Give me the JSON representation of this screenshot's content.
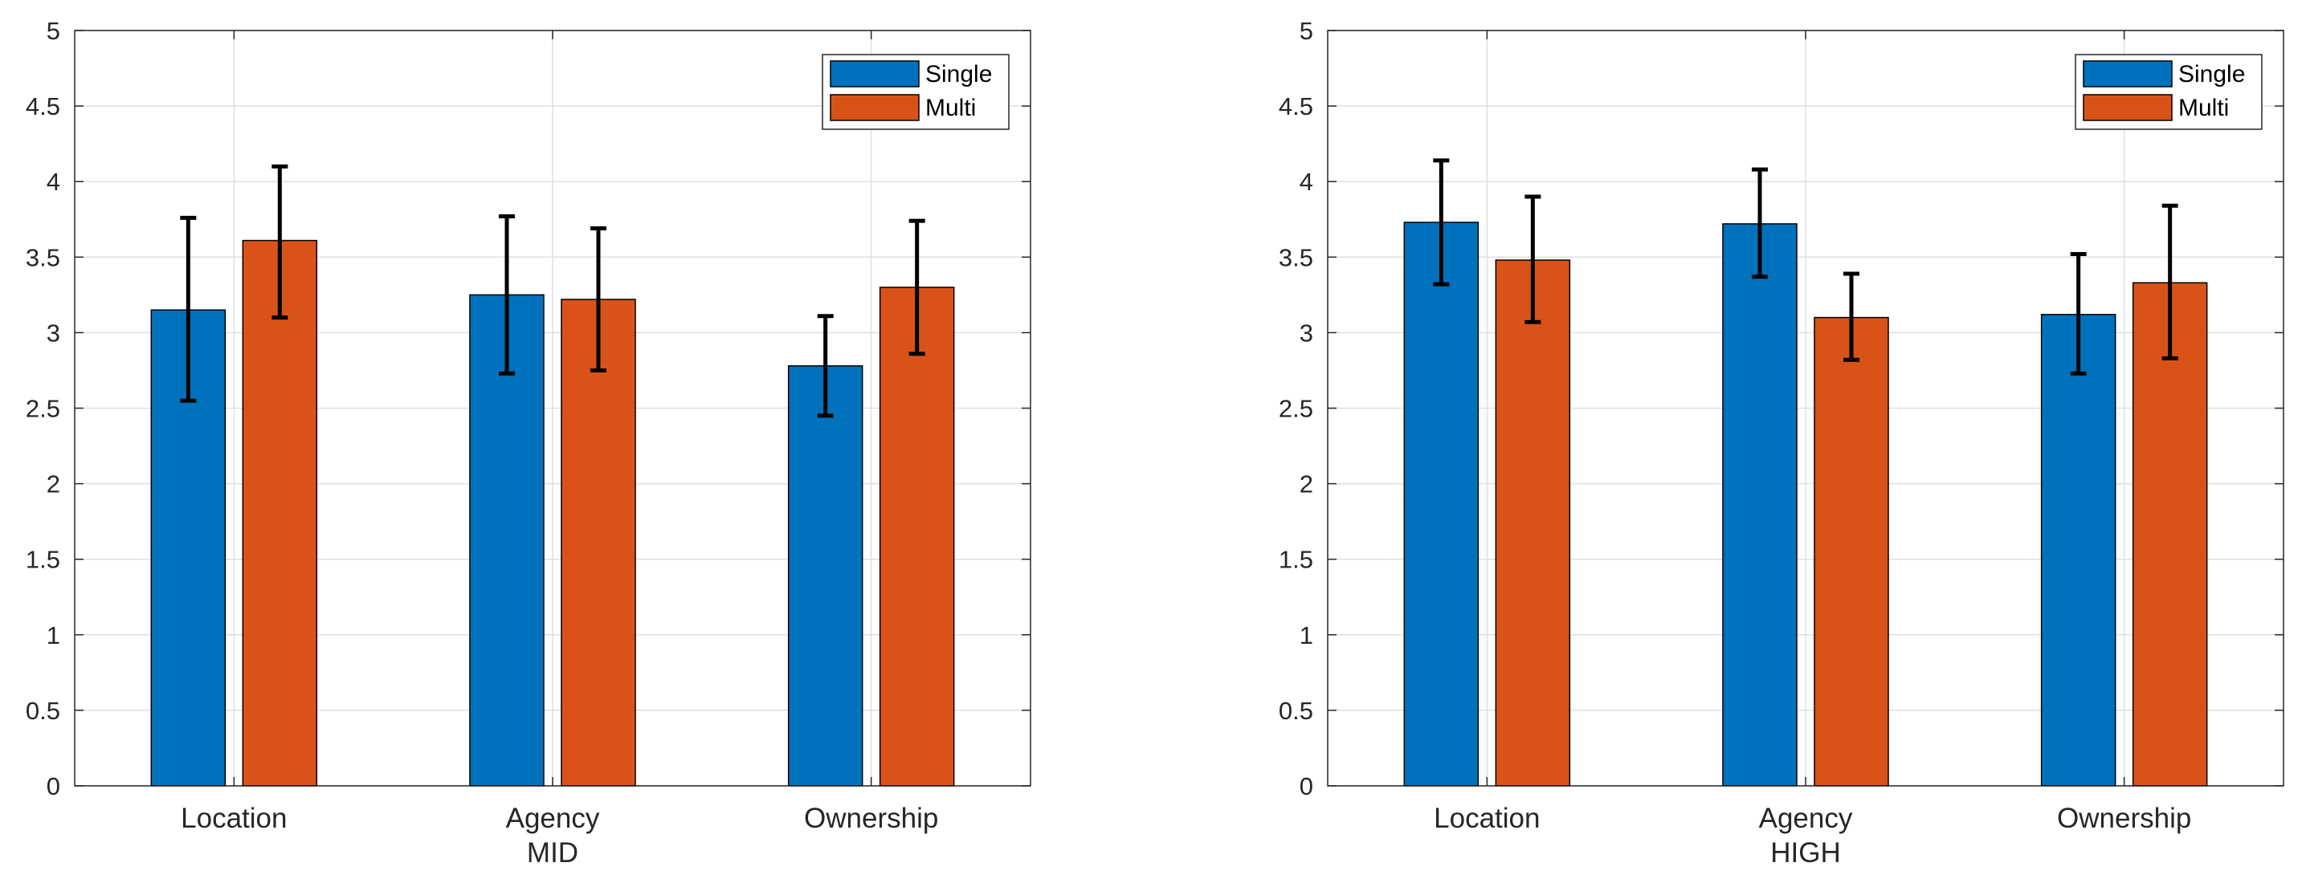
{
  "chart_data": [
    {
      "type": "bar",
      "title": "",
      "xlabel": "MID",
      "ylabel": "",
      "categories": [
        "Location",
        "Agency",
        "Ownership"
      ],
      "ylim": [
        0,
        5
      ],
      "yticks": [
        0,
        0.5,
        1,
        1.5,
        2,
        2.5,
        3,
        3.5,
        4,
        4.5,
        5
      ],
      "ytick_labels": [
        "0",
        "0.5",
        "1",
        "1.5",
        "2",
        "2.5",
        "3",
        "3.5",
        "4",
        "4.5",
        "5"
      ],
      "grid": true,
      "legend_position": "top-right",
      "series": [
        {
          "name": "Single",
          "color": "#0072BD",
          "values": [
            3.15,
            3.25,
            2.78
          ],
          "err_low": [
            2.55,
            2.73,
            2.45
          ],
          "err_high": [
            3.76,
            3.77,
            3.11
          ]
        },
        {
          "name": "Multi",
          "color": "#D95319",
          "values": [
            3.61,
            3.22,
            3.3
          ],
          "err_low": [
            3.1,
            2.75,
            2.86
          ],
          "err_high": [
            4.1,
            3.69,
            3.74
          ]
        }
      ]
    },
    {
      "type": "bar",
      "title": "",
      "xlabel": "HIGH",
      "ylabel": "",
      "categories": [
        "Location",
        "Agency",
        "Ownership"
      ],
      "ylim": [
        0,
        5
      ],
      "yticks": [
        0,
        0.5,
        1,
        1.5,
        2,
        2.5,
        3,
        3.5,
        4,
        4.5,
        5
      ],
      "ytick_labels": [
        "0",
        "0.5",
        "1",
        "1.5",
        "2",
        "2.5",
        "3",
        "3.5",
        "4",
        "4.5",
        "5"
      ],
      "grid": true,
      "legend_position": "top-right",
      "series": [
        {
          "name": "Single",
          "color": "#0072BD",
          "values": [
            3.73,
            3.72,
            3.12
          ],
          "err_low": [
            3.32,
            3.37,
            2.73
          ],
          "err_high": [
            4.14,
            4.08,
            3.52
          ]
        },
        {
          "name": "Multi",
          "color": "#D95319",
          "values": [
            3.48,
            3.1,
            3.33
          ],
          "err_low": [
            3.07,
            2.82,
            2.83
          ],
          "err_high": [
            3.9,
            3.39,
            3.84
          ]
        }
      ]
    }
  ]
}
